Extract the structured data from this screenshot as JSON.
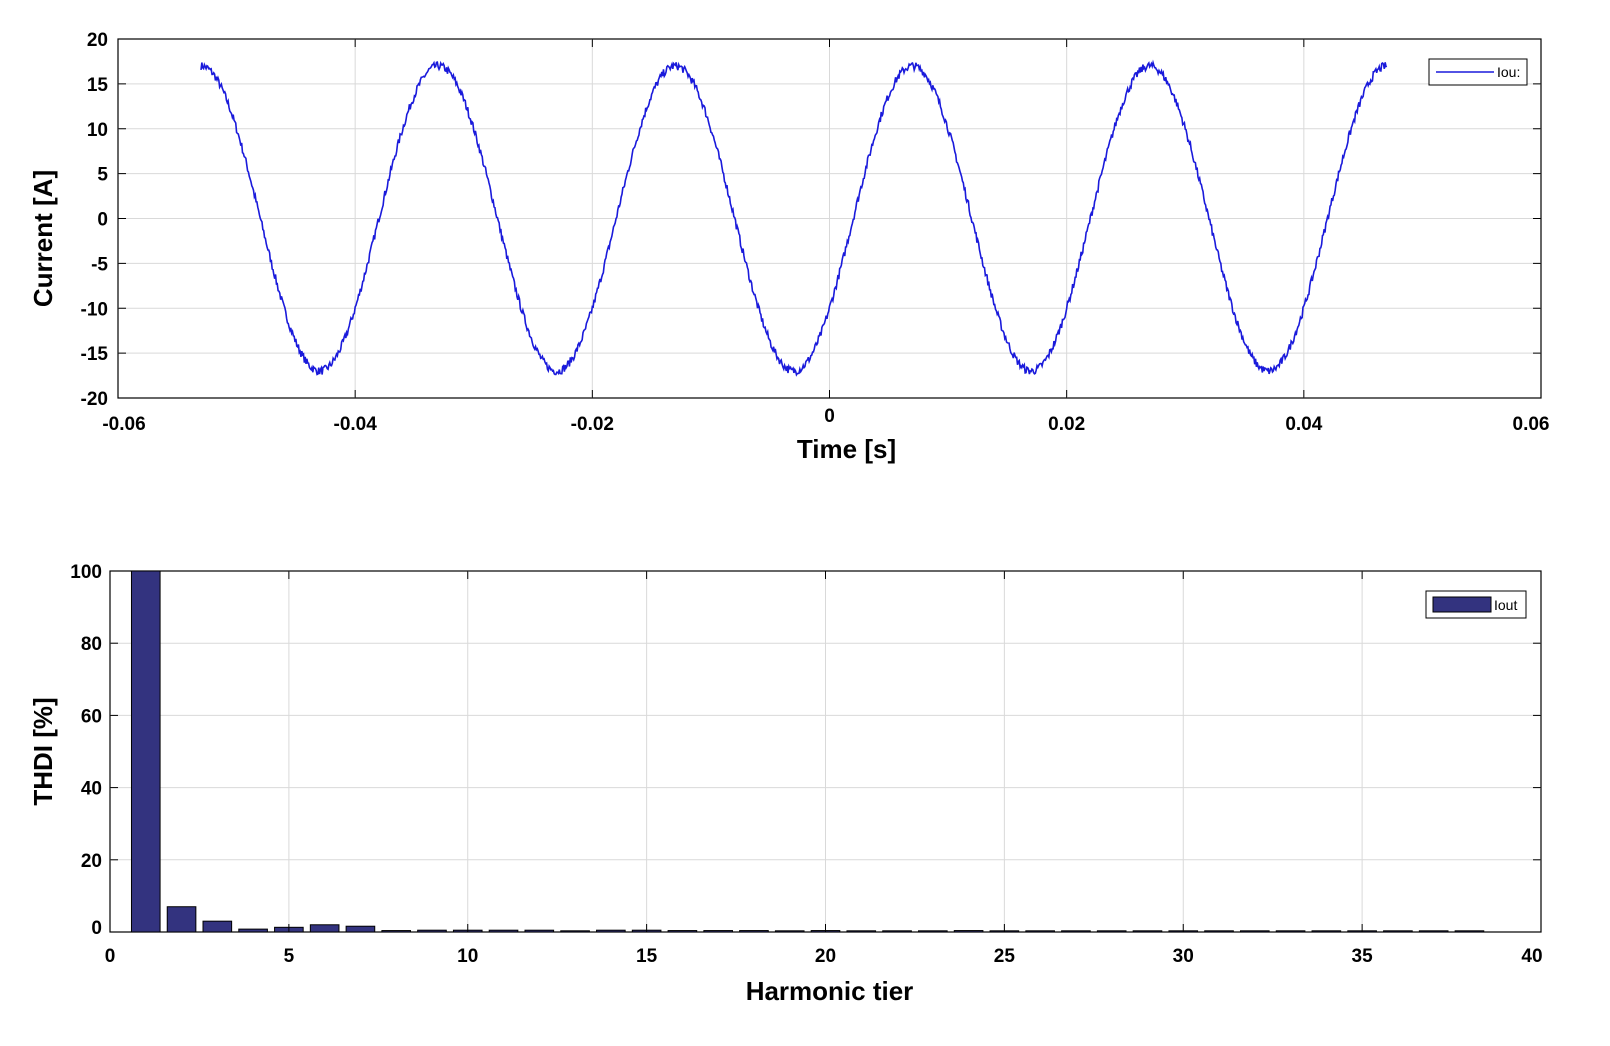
{
  "chart_data": [
    {
      "type": "line",
      "xlabel": "Time [s]",
      "ylabel": "Current [A]",
      "xlim": [
        -0.06,
        0.06
      ],
      "ylim": [
        -20,
        20
      ],
      "xticks": [
        "-0.06",
        "-0.04",
        "-0.02",
        "0",
        "0.02",
        "0.04",
        "0.06"
      ],
      "yticks": [
        "20",
        "15",
        "10",
        "5",
        "0",
        "-5",
        "-10",
        "-15",
        "-20"
      ],
      "grid": true,
      "legend_position": "top-right",
      "series": [
        {
          "name": "Iout",
          "color": "#1a1adb",
          "x_start": -0.053,
          "x_end": 0.047,
          "amplitude": 17,
          "frequency_hz": 50,
          "phase_peak_time": -0.033
        }
      ]
    },
    {
      "type": "bar",
      "xlabel": "Harmonic tier",
      "ylabel": "THDI [%]",
      "xlim": [
        0,
        40
      ],
      "ylim": [
        0,
        100
      ],
      "xticks": [
        "0",
        "5",
        "10",
        "15",
        "20",
        "25",
        "30",
        "35",
        "40"
      ],
      "yticks": [
        "100",
        "80",
        "60",
        "40",
        "20",
        "0"
      ],
      "grid": true,
      "legend_position": "top-right",
      "bar_color": "#33337f",
      "series": [
        {
          "name": "Iout",
          "categories": [
            1,
            2,
            3,
            4,
            5,
            6,
            7,
            8,
            9,
            10,
            11,
            12,
            13,
            14,
            15,
            16,
            17,
            18,
            19,
            20,
            21,
            22,
            23,
            24,
            25,
            26,
            27,
            28,
            29,
            30,
            31,
            32,
            33,
            34,
            35,
            36,
            37,
            38
          ],
          "values": [
            100,
            7,
            3,
            0.8,
            1.3,
            2,
            1.6,
            0.4,
            0.5,
            0.5,
            0.5,
            0.5,
            0.3,
            0.5,
            0.5,
            0.4,
            0.4,
            0.4,
            0.3,
            0.4,
            0.3,
            0.2,
            0.2,
            0.4,
            0.3,
            0.2,
            0.2,
            0.2,
            0.3,
            0.2,
            0.2,
            0.2,
            0.2,
            0.2,
            0.2,
            0.2,
            0.2,
            0.2
          ]
        }
      ]
    }
  ],
  "legend_top_label": "Iou:",
  "legend_bottom_label": "Iout"
}
